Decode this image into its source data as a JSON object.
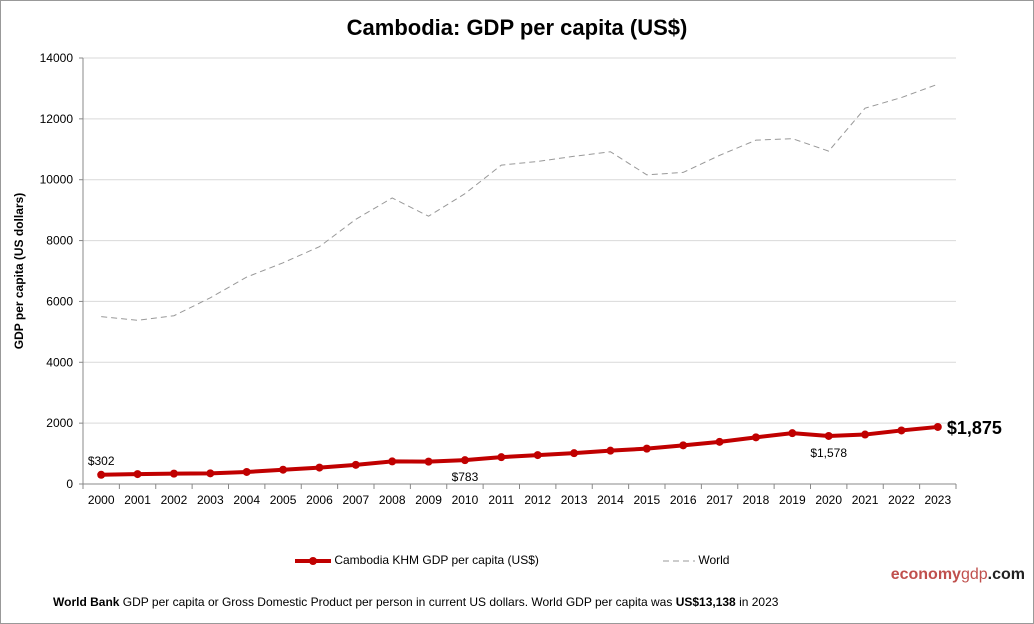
{
  "chart_data": {
    "type": "line",
    "title": "Cambodia: GDP per capita (US$)",
    "ylabel": "GDP per capita (US dollars)",
    "xlabel": "",
    "ylim": [
      0,
      14000
    ],
    "yticks": [
      0,
      2000,
      4000,
      6000,
      8000,
      10000,
      12000,
      14000
    ],
    "grid": true,
    "legend_placement": "bottom",
    "categories": [
      "2000",
      "2001",
      "2002",
      "2003",
      "2004",
      "2005",
      "2006",
      "2007",
      "2008",
      "2009",
      "2010",
      "2011",
      "2012",
      "2013",
      "2014",
      "2015",
      "2016",
      "2017",
      "2018",
      "2019",
      "2020",
      "2021",
      "2022",
      "2023"
    ],
    "series": [
      {
        "name": "Cambodia KHM GDP per capita (US$)",
        "color": "#c00000",
        "style": "solid-markers",
        "values": [
          302,
          326,
          341,
          350,
          396,
          469,
          540,
          630,
          743,
          735,
          783,
          882,
          950,
          1014,
          1095,
          1163,
          1270,
          1385,
          1533,
          1671,
          1578,
          1625,
          1760,
          1875
        ]
      },
      {
        "name": "World",
        "color": "#999999",
        "style": "dashed",
        "values": [
          5500,
          5380,
          5530,
          6120,
          6800,
          7270,
          7800,
          8700,
          9400,
          8800,
          9540,
          10480,
          10600,
          10770,
          10920,
          10160,
          10240,
          10800,
          11300,
          11350,
          10940,
          12350,
          12700,
          13138
        ]
      }
    ],
    "annotations": [
      {
        "category": "2000",
        "text": "$302"
      },
      {
        "category": "2010",
        "text": "$783"
      },
      {
        "category": "2020",
        "text": "$1,578"
      },
      {
        "category": "2023",
        "text": "$1,875"
      }
    ]
  },
  "brand": {
    "part1": "economy",
    "part2": "gdp",
    "part3": ".com"
  },
  "footer": {
    "source": "World Bank",
    "text": " GDP per capita or Gross Domestic Product per person  in current US dollars.   World GDP per capita was ",
    "value": "US$13,138",
    "tail": "  in 2023"
  }
}
